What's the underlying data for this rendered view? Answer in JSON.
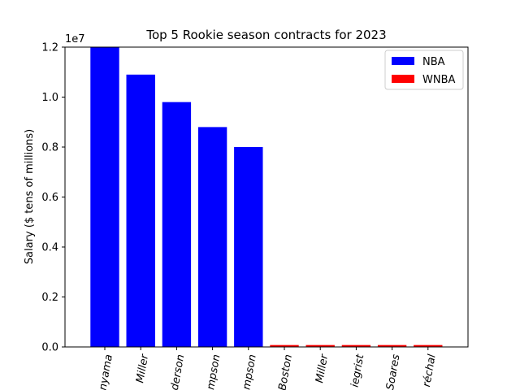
{
  "chart_data": {
    "type": "bar",
    "title": "Top 5 Rookie season contracts for 2023",
    "ylabel": "Salary ($ tens of millions)",
    "offset_label": "1e7",
    "ylim": [
      0,
      12000000
    ],
    "yticks": [
      {
        "value": 0,
        "label": "0.0"
      },
      {
        "value": 2000000,
        "label": "0.2"
      },
      {
        "value": 4000000,
        "label": "0.4"
      },
      {
        "value": 6000000,
        "label": "0.6"
      },
      {
        "value": 8000000,
        "label": "0.8"
      },
      {
        "value": 10000000,
        "label": "1.0"
      },
      {
        "value": 12000000,
        "label": "1.2"
      }
    ],
    "categories": [
      "nyama",
      "Miller",
      "nderson",
      "mpson",
      "mpson",
      "Boston",
      "Miller",
      "iegrist",
      "Soares",
      "réchal"
    ],
    "series": [
      {
        "name": "NBA",
        "color": "#0000ff",
        "values": [
          12000000,
          10900000,
          9800000,
          8800000,
          8000000,
          null,
          null,
          null,
          null,
          null
        ]
      },
      {
        "name": "WNBA",
        "color": "#ff0000",
        "values": [
          null,
          null,
          null,
          null,
          null,
          76000,
          76000,
          76000,
          76000,
          76000
        ]
      }
    ],
    "legend": "top-right",
    "grid": false
  }
}
